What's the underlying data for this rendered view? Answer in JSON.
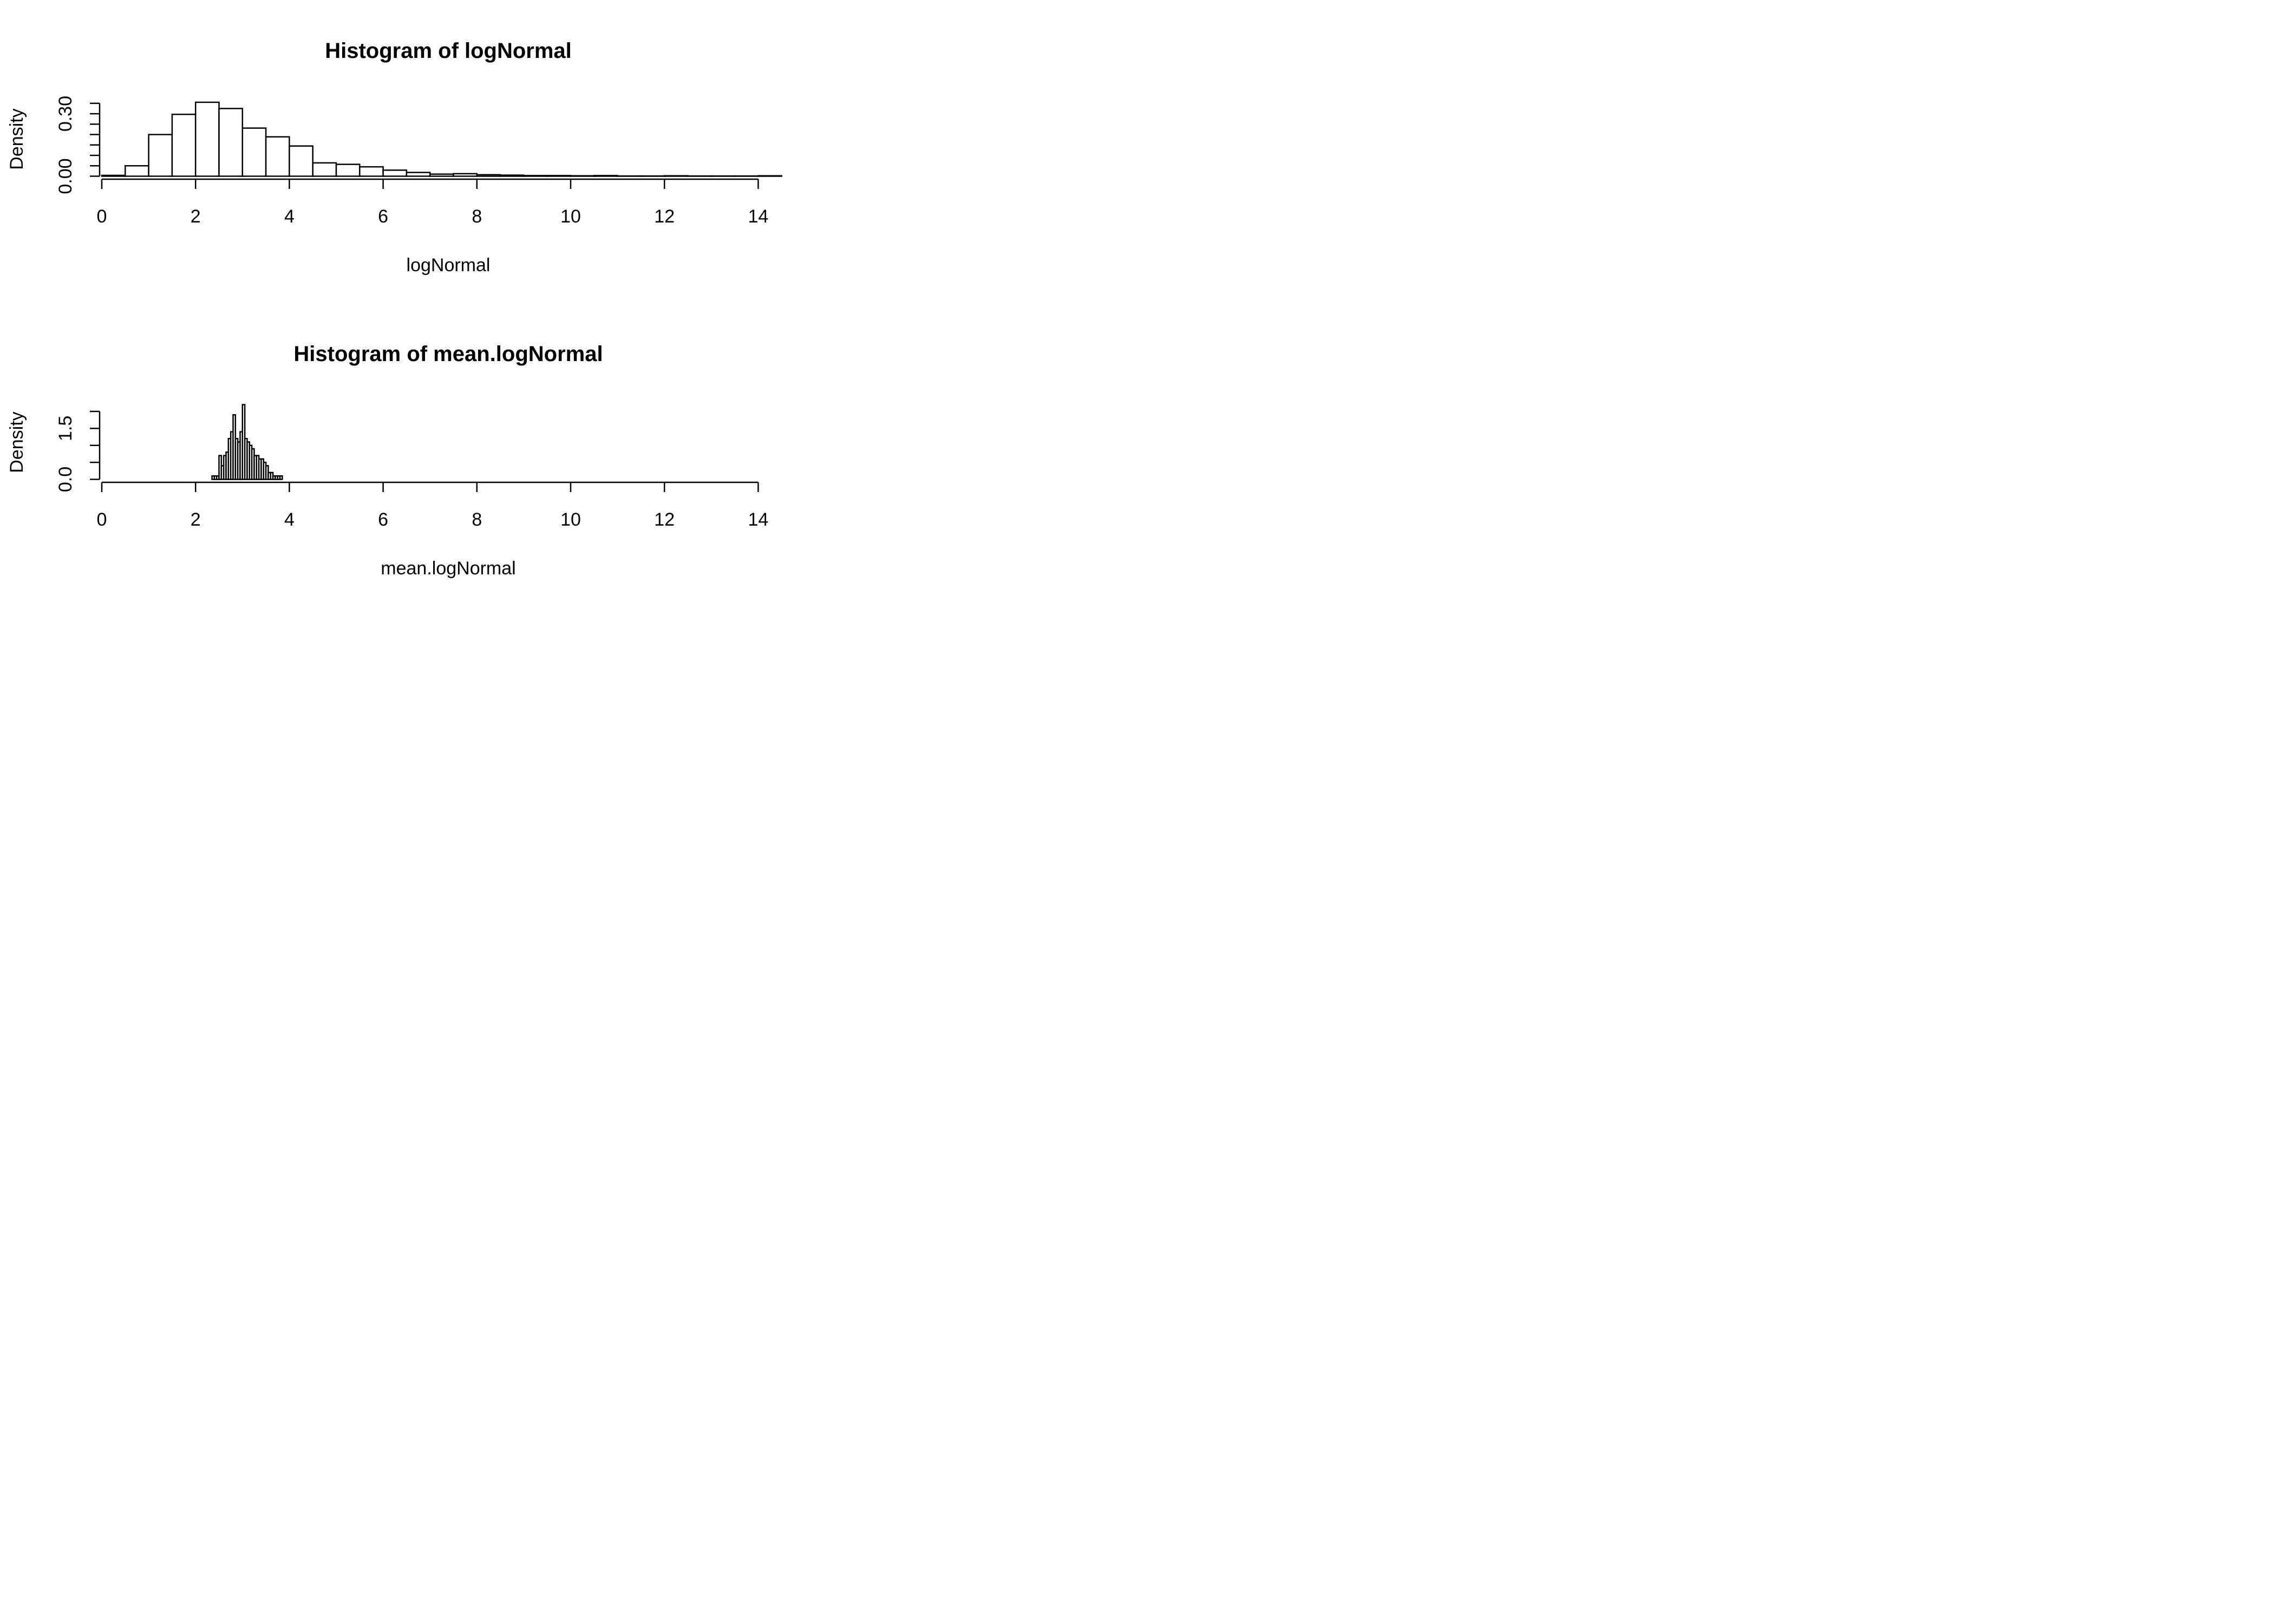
{
  "chart_data": [
    {
      "type": "bar",
      "title": "Histogram of logNormal",
      "xlabel": "logNormal",
      "ylabel": "Density",
      "xlim": [
        0,
        14.5
      ],
      "ylim": [
        0,
        0.36
      ],
      "xticks": [
        0,
        2,
        4,
        6,
        8,
        10,
        12,
        14
      ],
      "xtick_labels": [
        "0",
        "2",
        "4",
        "6",
        "8",
        "10",
        "12",
        "14"
      ],
      "yticks": [
        0,
        0.05,
        0.1,
        0.15,
        0.2,
        0.25,
        0.3,
        0.35
      ],
      "ytick_labels": [
        "0.00",
        "",
        "",
        "",
        "",
        "",
        "0.30",
        ""
      ],
      "bin_width": 0.5,
      "bins": [
        {
          "x0": 0.0,
          "x1": 0.5,
          "density": 0.004
        },
        {
          "x0": 0.5,
          "x1": 1.0,
          "density": 0.05
        },
        {
          "x0": 1.0,
          "x1": 1.5,
          "density": 0.2
        },
        {
          "x0": 1.5,
          "x1": 2.0,
          "density": 0.297
        },
        {
          "x0": 2.0,
          "x1": 2.5,
          "density": 0.355
        },
        {
          "x0": 2.5,
          "x1": 3.0,
          "density": 0.325
        },
        {
          "x0": 3.0,
          "x1": 3.5,
          "density": 0.231
        },
        {
          "x0": 3.5,
          "x1": 4.0,
          "density": 0.189
        },
        {
          "x0": 4.0,
          "x1": 4.5,
          "density": 0.145
        },
        {
          "x0": 4.5,
          "x1": 5.0,
          "density": 0.064
        },
        {
          "x0": 5.0,
          "x1": 5.5,
          "density": 0.057
        },
        {
          "x0": 5.5,
          "x1": 6.0,
          "density": 0.045
        },
        {
          "x0": 6.0,
          "x1": 6.5,
          "density": 0.029
        },
        {
          "x0": 6.5,
          "x1": 7.0,
          "density": 0.018
        },
        {
          "x0": 7.0,
          "x1": 7.5,
          "density": 0.01
        },
        {
          "x0": 7.5,
          "x1": 8.0,
          "density": 0.012
        },
        {
          "x0": 8.0,
          "x1": 8.5,
          "density": 0.007
        },
        {
          "x0": 8.5,
          "x1": 9.0,
          "density": 0.005
        },
        {
          "x0": 9.0,
          "x1": 9.5,
          "density": 0.003
        },
        {
          "x0": 9.5,
          "x1": 10.0,
          "density": 0.003
        },
        {
          "x0": 10.0,
          "x1": 10.5,
          "density": 0.002
        },
        {
          "x0": 10.5,
          "x1": 11.0,
          "density": 0.003
        },
        {
          "x0": 11.0,
          "x1": 11.5,
          "density": 0.001
        },
        {
          "x0": 11.5,
          "x1": 12.0,
          "density": 0.001
        },
        {
          "x0": 12.0,
          "x1": 12.5,
          "density": 0.002
        },
        {
          "x0": 12.5,
          "x1": 13.0,
          "density": 0.001
        },
        {
          "x0": 13.0,
          "x1": 13.5,
          "density": 0.001
        },
        {
          "x0": 13.5,
          "x1": 14.0,
          "density": 0.001
        },
        {
          "x0": 14.0,
          "x1": 14.5,
          "density": 0.002
        }
      ]
    },
    {
      "type": "bar",
      "title": "Histogram of mean.logNormal",
      "xlabel": "mean.logNormal",
      "ylabel": "Density",
      "xlim": [
        0,
        14
      ],
      "ylim": [
        0,
        2.0
      ],
      "xticks": [
        0,
        2,
        4,
        6,
        8,
        10,
        12,
        14
      ],
      "xtick_labels": [
        "0",
        "2",
        "4",
        "6",
        "8",
        "10",
        "12",
        "14"
      ],
      "yticks": [
        0,
        0.5,
        1.0,
        1.5,
        2.0
      ],
      "ytick_labels": [
        "0.0",
        "",
        "",
        "1.5",
        ""
      ],
      "bin_width": 0.05,
      "bins": [
        {
          "x0": 2.35,
          "x1": 2.4,
          "density": 0.1
        },
        {
          "x0": 2.4,
          "x1": 2.45,
          "density": 0.1
        },
        {
          "x0": 2.45,
          "x1": 2.5,
          "density": 0.1
        },
        {
          "x0": 2.5,
          "x1": 2.55,
          "density": 0.7
        },
        {
          "x0": 2.55,
          "x1": 2.6,
          "density": 0.4
        },
        {
          "x0": 2.6,
          "x1": 2.65,
          "density": 0.7
        },
        {
          "x0": 2.65,
          "x1": 2.7,
          "density": 0.8
        },
        {
          "x0": 2.7,
          "x1": 2.75,
          "density": 1.2
        },
        {
          "x0": 2.75,
          "x1": 2.8,
          "density": 1.4
        },
        {
          "x0": 2.8,
          "x1": 2.85,
          "density": 1.9
        },
        {
          "x0": 2.85,
          "x1": 2.9,
          "density": 1.2
        },
        {
          "x0": 2.9,
          "x1": 2.95,
          "density": 1.1
        },
        {
          "x0": 2.95,
          "x1": 3.0,
          "density": 1.4
        },
        {
          "x0": 3.0,
          "x1": 3.05,
          "density": 2.2
        },
        {
          "x0": 3.05,
          "x1": 3.1,
          "density": 1.2
        },
        {
          "x0": 3.1,
          "x1": 3.15,
          "density": 1.1
        },
        {
          "x0": 3.15,
          "x1": 3.2,
          "density": 1.0
        },
        {
          "x0": 3.2,
          "x1": 3.25,
          "density": 0.9
        },
        {
          "x0": 3.25,
          "x1": 3.3,
          "density": 0.7
        },
        {
          "x0": 3.3,
          "x1": 3.35,
          "density": 0.7
        },
        {
          "x0": 3.35,
          "x1": 3.4,
          "density": 0.6
        },
        {
          "x0": 3.4,
          "x1": 3.45,
          "density": 0.6
        },
        {
          "x0": 3.45,
          "x1": 3.5,
          "density": 0.5
        },
        {
          "x0": 3.5,
          "x1": 3.55,
          "density": 0.4
        },
        {
          "x0": 3.55,
          "x1": 3.6,
          "density": 0.2
        },
        {
          "x0": 3.6,
          "x1": 3.65,
          "density": 0.2
        },
        {
          "x0": 3.65,
          "x1": 3.7,
          "density": 0.1
        },
        {
          "x0": 3.7,
          "x1": 3.75,
          "density": 0.1
        },
        {
          "x0": 3.75,
          "x1": 3.8,
          "density": 0.1
        },
        {
          "x0": 3.8,
          "x1": 3.85,
          "density": 0.1
        }
      ]
    }
  ]
}
